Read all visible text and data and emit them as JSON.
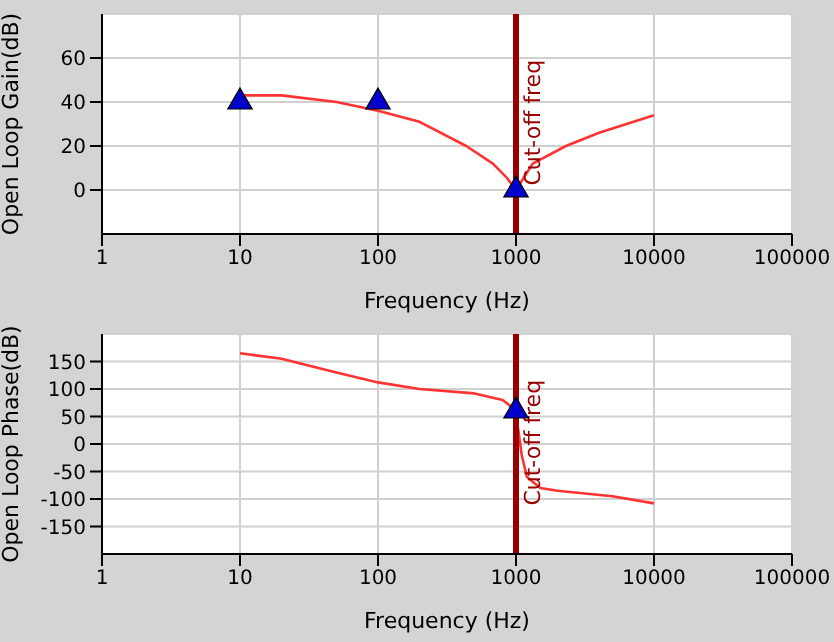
{
  "chart_data": [
    {
      "type": "line",
      "xlabel": "Frequency (Hz)",
      "ylabel": "Open Loop Gain(dB)",
      "log": "x",
      "grid": true,
      "xlim": [
        1,
        100000
      ],
      "xticks": [
        1,
        10,
        100,
        1000,
        10000,
        100000
      ],
      "ylim": [
        -20,
        80
      ],
      "yticks": [
        0,
        20,
        40,
        60
      ],
      "series": [
        {
          "color": "#ff3333",
          "marker": "none",
          "x": [
            10,
            20,
            50,
            100,
            200,
            436,
            680,
            846,
            1000,
            1320,
            2300,
            4000,
            10000
          ],
          "values": [
            43,
            43,
            40,
            36,
            31,
            20,
            12,
            6,
            0,
            12,
            20,
            26,
            34
          ]
        },
        {
          "type": "scatter",
          "color": "#0000cc",
          "marker": "triangle",
          "x": [
            10,
            100,
            1000
          ],
          "values": [
            40,
            40,
            0
          ]
        }
      ],
      "ref_lines": [
        {
          "axis": "x",
          "value": 1000,
          "label": "Cut-off freq",
          "color": "#990000"
        }
      ]
    },
    {
      "type": "line",
      "xlabel": "Frequency (Hz)",
      "ylabel": "Open Loop Phase(dB)",
      "log": "x",
      "grid": true,
      "xlim": [
        1,
        100000
      ],
      "xticks": [
        1,
        10,
        100,
        1000,
        10000,
        100000
      ],
      "ylim": [
        -200,
        200
      ],
      "yticks": [
        -150,
        -100,
        -50,
        0,
        50,
        100,
        150
      ],
      "series": [
        {
          "color": "#ff3333",
          "marker": "none",
          "x": [
            10,
            20,
            50,
            100,
            200,
            500,
            800,
            900,
            1000,
            1100,
            1200,
            1500,
            2000,
            5000,
            10000
          ],
          "values": [
            165,
            155,
            130,
            112,
            100,
            92,
            80,
            70,
            55,
            -20,
            -60,
            -80,
            -85,
            -95,
            -108
          ]
        },
        {
          "type": "scatter",
          "color": "#0000cc",
          "marker": "triangle",
          "x": [
            1000
          ],
          "values": [
            60
          ]
        }
      ],
      "ref_lines": [
        {
          "axis": "x",
          "value": 1000,
          "label": "Cut-off freq",
          "color": "#990000"
        }
      ]
    }
  ]
}
